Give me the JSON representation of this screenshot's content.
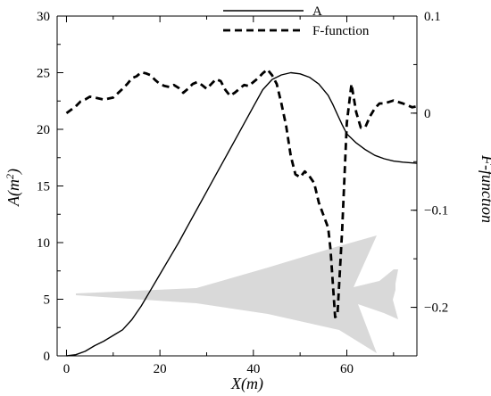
{
  "chart_data": {
    "type": "line",
    "xlabel": "X(m)",
    "ylabel_left": {
      "base": "A(m",
      "sup": "2",
      "end": ")"
    },
    "ylabel_right": "F-function",
    "xlim": [
      -2,
      75
    ],
    "ylim_left": [
      0,
      30
    ],
    "ylim_right": [
      -0.25,
      0.1
    ],
    "x_ticks": [
      0,
      20,
      40,
      60
    ],
    "y_left_ticks": [
      0,
      5,
      10,
      15,
      20,
      25,
      30
    ],
    "y_right_ticks": [
      {
        "value": 0.1,
        "label": "0.1"
      },
      {
        "value": 0,
        "label": "0"
      },
      {
        "value": -0.1,
        "label": "−0.1"
      },
      {
        "value": -0.2,
        "label": "−0.2"
      }
    ],
    "legend_position": "top-center",
    "series": [
      {
        "name": "A",
        "axis": "left",
        "style": "solid",
        "color": "#000000",
        "x": [
          0,
          2,
          4,
          6,
          8,
          10,
          12,
          14,
          16,
          18,
          20,
          22,
          24,
          26,
          28,
          30,
          32,
          34,
          36,
          38,
          40,
          42,
          44,
          46,
          48,
          50,
          52,
          54,
          56,
          57,
          58,
          59,
          60,
          62,
          64,
          66,
          68,
          70,
          72,
          75
        ],
        "values": [
          0,
          0.1,
          0.4,
          0.9,
          1.3,
          1.8,
          2.3,
          3.2,
          4.4,
          5.8,
          7.2,
          8.6,
          10.0,
          11.5,
          13.0,
          14.5,
          16.0,
          17.5,
          19.0,
          20.5,
          22.0,
          23.5,
          24.4,
          24.8,
          25.0,
          24.9,
          24.6,
          24.0,
          23.0,
          22.2,
          21.3,
          20.4,
          19.6,
          18.8,
          18.2,
          17.7,
          17.4,
          17.2,
          17.1,
          17.0
        ]
      },
      {
        "name": "F-function",
        "axis": "right",
        "style": "dashed",
        "color": "#000000",
        "x": [
          0,
          2,
          3,
          4,
          5,
          6,
          7,
          8,
          9,
          10,
          12,
          13,
          14,
          15,
          16,
          17,
          18,
          19,
          20,
          21,
          22,
          23,
          24,
          25,
          26,
          27,
          28,
          29,
          30,
          31,
          32,
          33,
          34,
          35,
          36,
          37,
          38,
          39,
          40,
          41,
          42,
          43,
          44,
          45,
          46,
          47,
          48,
          49,
          50,
          51,
          52,
          53,
          54,
          55,
          56,
          56.5,
          57,
          57.5,
          58,
          59,
          60,
          61,
          62,
          63,
          64,
          65,
          66,
          67,
          68,
          70,
          72,
          74,
          75
        ],
        "values": [
          0.0,
          0.007,
          0.012,
          0.014,
          0.017,
          0.016,
          0.015,
          0.014,
          0.015,
          0.016,
          0.025,
          0.03,
          0.036,
          0.038,
          0.042,
          0.041,
          0.039,
          0.034,
          0.03,
          0.028,
          0.027,
          0.029,
          0.026,
          0.021,
          0.025,
          0.03,
          0.032,
          0.029,
          0.025,
          0.03,
          0.035,
          0.033,
          0.024,
          0.018,
          0.021,
          0.025,
          0.029,
          0.028,
          0.032,
          0.036,
          0.041,
          0.045,
          0.039,
          0.03,
          0.01,
          -0.013,
          -0.044,
          -0.063,
          -0.066,
          -0.06,
          -0.065,
          -0.072,
          -0.092,
          -0.105,
          -0.118,
          -0.14,
          -0.175,
          -0.21,
          -0.208,
          -0.12,
          -0.01,
          0.03,
          0.001,
          -0.015,
          -0.014,
          -0.003,
          0.005,
          0.01,
          0.01,
          0.013,
          0.01,
          0.006,
          0.007
        ]
      }
    ]
  },
  "colors": {
    "aircraft_silhouette": "#d9d9d9",
    "axes": "#000000"
  },
  "decoration": {
    "silhouette_icon": "aircraft-planform"
  }
}
